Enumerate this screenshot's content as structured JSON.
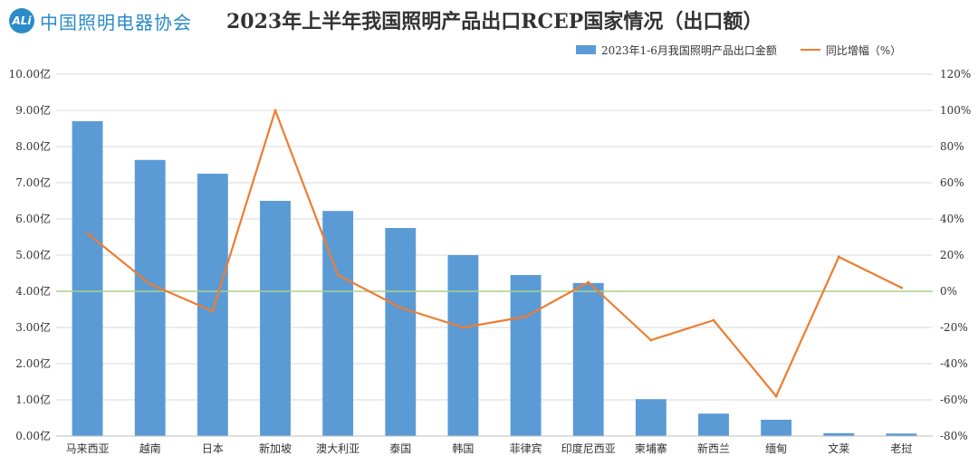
{
  "header": {
    "logo_mark": "ALi",
    "logo_text": "中国照明电器协会",
    "title": "2023年上半年我国照明产品出口RCEP国家情况（出口额）"
  },
  "colors": {
    "bar": "#5b9bd5",
    "line": "#ed7d31",
    "zero_line": "#a9d18e",
    "grid": "#d9d9d9",
    "brand": "#2a8bc8"
  },
  "chart_data": {
    "type": "bar",
    "categories": [
      "马来西亚",
      "越南",
      "日本",
      "新加坡",
      "澳大利亚",
      "泰国",
      "韩国",
      "菲律宾",
      "印度尼西亚",
      "柬埔寨",
      "新西兰",
      "缅甸",
      "文莱",
      "老挝"
    ],
    "series": [
      {
        "name": "2023年1-6月我国照明产品出口金额",
        "type": "bar",
        "axis": "left",
        "values": [
          8.7,
          7.63,
          7.25,
          6.5,
          6.22,
          5.75,
          5.0,
          4.45,
          4.23,
          1.02,
          0.62,
          0.45,
          0.08,
          0.07
        ]
      },
      {
        "name": "同比增幅（%）",
        "type": "line",
        "axis": "right",
        "values": [
          32,
          4,
          -11,
          100,
          9,
          -9,
          -20,
          -14,
          5,
          -27,
          -16,
          -58,
          19,
          2
        ]
      }
    ],
    "y_left": {
      "min": 0,
      "max": 10,
      "step": 1,
      "tick_labels": [
        "0.00亿",
        "1.00亿",
        "2.00亿",
        "3.00亿",
        "4.00亿",
        "5.00亿",
        "6.00亿",
        "7.00亿",
        "8.00亿",
        "9.00亿",
        "10.00亿"
      ]
    },
    "y_right": {
      "min": -80,
      "max": 120,
      "step": 20,
      "tick_labels": [
        "-80%",
        "-60%",
        "-40%",
        "-20%",
        "0%",
        "20%",
        "40%",
        "60%",
        "80%",
        "100%",
        "120%"
      ]
    },
    "grid": true,
    "legend_position": "top-right"
  }
}
